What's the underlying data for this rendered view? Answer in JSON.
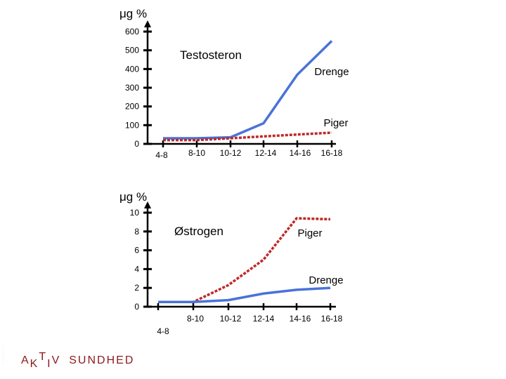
{
  "chart_data": [
    {
      "type": "line",
      "unit_label": "μg %",
      "title": "Testosteron",
      "categories": [
        "4-8",
        "8-10",
        "10-12",
        "12-14",
        "14-16",
        "16-18"
      ],
      "yticks": [
        "600",
        "500",
        "400",
        "300",
        "200",
        "100",
        "0"
      ],
      "ylim": [
        0,
        600
      ],
      "series": [
        {
          "name": "Drenge",
          "values": [
            30,
            30,
            35,
            110,
            370,
            550
          ],
          "color": "#4a72d8",
          "style": "solid"
        },
        {
          "name": "Piger",
          "values": [
            20,
            20,
            30,
            40,
            50,
            60
          ],
          "color": "#c02828",
          "style": "dashed"
        }
      ]
    },
    {
      "type": "line",
      "unit_label": "μg %",
      "title": "Østrogen",
      "categories": [
        "4-8",
        "8-10",
        "10-12",
        "12-14",
        "14-16",
        "16-18"
      ],
      "yticks": [
        "10",
        "8",
        "6",
        "4",
        "2",
        "0"
      ],
      "ylim": [
        0,
        10
      ],
      "series": [
        {
          "name": "Piger",
          "values": [
            0.5,
            0.5,
            2.3,
            5.0,
            9.4,
            9.3
          ],
          "color": "#c02828",
          "style": "dashed"
        },
        {
          "name": "Drenge",
          "values": [
            0.5,
            0.5,
            0.7,
            1.4,
            1.8,
            2.0
          ],
          "color": "#4a72d8",
          "style": "solid"
        }
      ]
    }
  ],
  "logo": {
    "a": "A",
    "k": "K",
    "t": "T",
    "i": "I",
    "v": "V",
    "word": "SUNDHED"
  },
  "colors": {
    "logo": "#8b1a1a"
  }
}
